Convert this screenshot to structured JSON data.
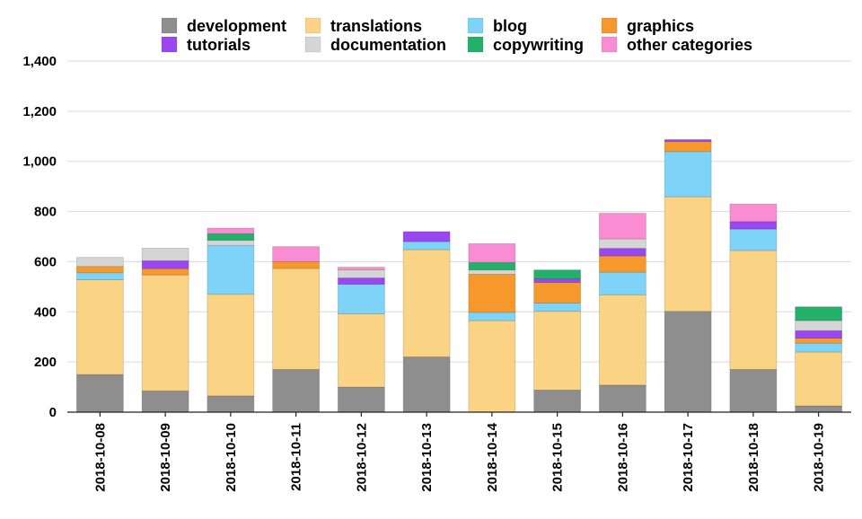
{
  "chart_data": {
    "type": "bar",
    "stacked": true,
    "title": "",
    "xlabel": "",
    "ylabel": "",
    "ylim": [
      0,
      1400
    ],
    "yticks": [
      0,
      200,
      400,
      600,
      800,
      1000,
      1200,
      1400
    ],
    "ytick_labels": [
      "0",
      "200",
      "400",
      "600",
      "800",
      "1,000",
      "1,200",
      "1,400"
    ],
    "grid": true,
    "legend_position": "top",
    "categories": [
      "2018-10-08",
      "2018-10-09",
      "2018-10-10",
      "2018-10-11",
      "2018-10-12",
      "2018-10-13",
      "2018-10-14",
      "2018-10-15",
      "2018-10-16",
      "2018-10-17",
      "2018-10-18",
      "2018-10-19"
    ],
    "series": [
      {
        "name": "development",
        "color": "#8e8e8e",
        "values": [
          150,
          85,
          65,
          170,
          100,
          220,
          0,
          88,
          108,
          402,
          170,
          25
        ]
      },
      {
        "name": "translations",
        "color": "#fbd384",
        "values": [
          378,
          462,
          405,
          403,
          292,
          428,
          365,
          314,
          360,
          457,
          475,
          215
        ]
      },
      {
        "name": "blog",
        "color": "#7dd4f8",
        "values": [
          28,
          0,
          195,
          0,
          118,
          32,
          33,
          33,
          90,
          180,
          85,
          35
        ]
      },
      {
        "name": "graphics",
        "color": "#f7982c",
        "values": [
          25,
          25,
          0,
          27,
          0,
          0,
          152,
          82,
          65,
          40,
          0,
          20
        ]
      },
      {
        "name": "tutorials",
        "color": "#9a47f2",
        "values": [
          0,
          32,
          0,
          0,
          25,
          40,
          0,
          15,
          30,
          8,
          30,
          30
        ]
      },
      {
        "name": "documentation",
        "color": "#d5d5d5",
        "values": [
          36,
          50,
          20,
          0,
          33,
          0,
          17,
          0,
          38,
          0,
          0,
          40
        ]
      },
      {
        "name": "copywriting",
        "color": "#23b06a",
        "values": [
          0,
          0,
          27,
          0,
          0,
          0,
          30,
          35,
          0,
          0,
          0,
          55
        ]
      },
      {
        "name": "other categories",
        "color": "#f98cd2",
        "values": [
          0,
          0,
          22,
          60,
          10,
          0,
          75,
          0,
          102,
          0,
          70,
          0
        ]
      }
    ],
    "legend_order": [
      "development",
      "translations",
      "blog",
      "graphics",
      "tutorials",
      "documentation",
      "copywriting",
      "other categories"
    ]
  }
}
